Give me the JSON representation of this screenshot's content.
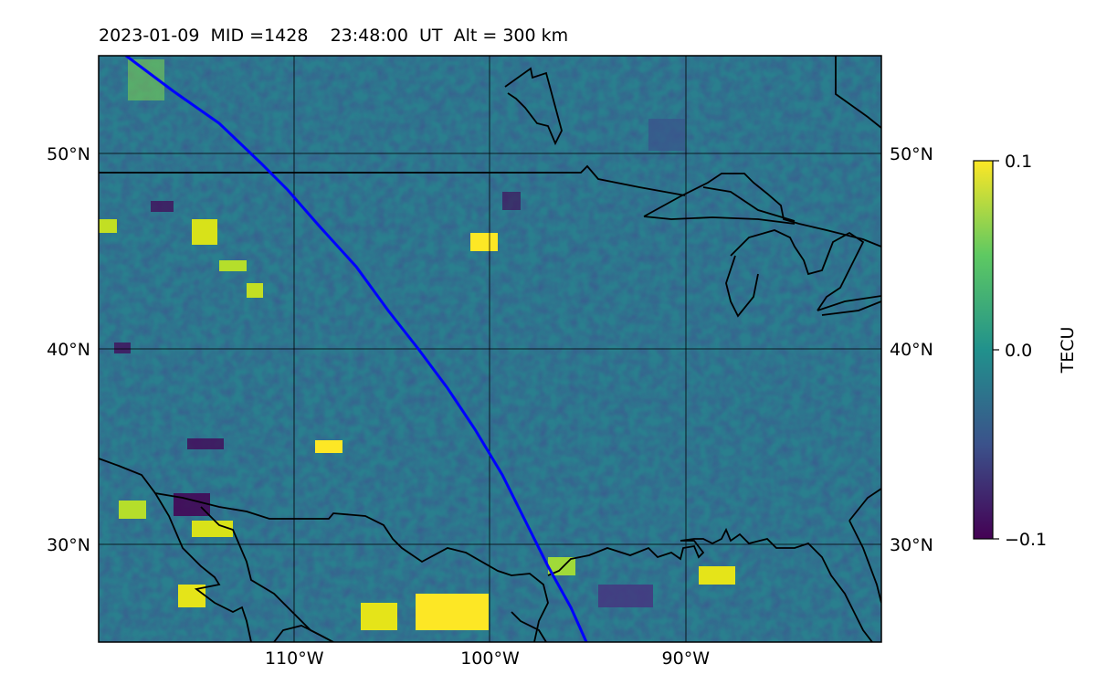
{
  "title": "2023-01-09  MID =1428    23:48:00  UT  Alt = 300 km",
  "map": {
    "lon_range": [
      -120,
      -80
    ],
    "lat_range": [
      25,
      55
    ],
    "lat_ticks": [
      {
        "value": 30,
        "label": "30°N"
      },
      {
        "value": 40,
        "label": "40°N"
      },
      {
        "value": 50,
        "label": "50°N"
      }
    ],
    "lon_ticks": [
      {
        "value": -110,
        "label": "110°W"
      },
      {
        "value": -100,
        "label": "100°W"
      },
      {
        "value": -90,
        "label": "90°W"
      }
    ],
    "track_color": "#0000ff",
    "coastline_color": "#000000"
  },
  "colorbar": {
    "label": "TECU",
    "min": -0.1,
    "max": 0.1,
    "ticks": [
      {
        "value": 0.1,
        "label": "0.1"
      },
      {
        "value": 0.0,
        "label": "0.0"
      },
      {
        "value": -0.1,
        "label": "−0.1"
      }
    ],
    "colormap": "viridis",
    "colors": [
      "#440154",
      "#3b528b",
      "#21918c",
      "#5ec962",
      "#fde725"
    ]
  }
}
